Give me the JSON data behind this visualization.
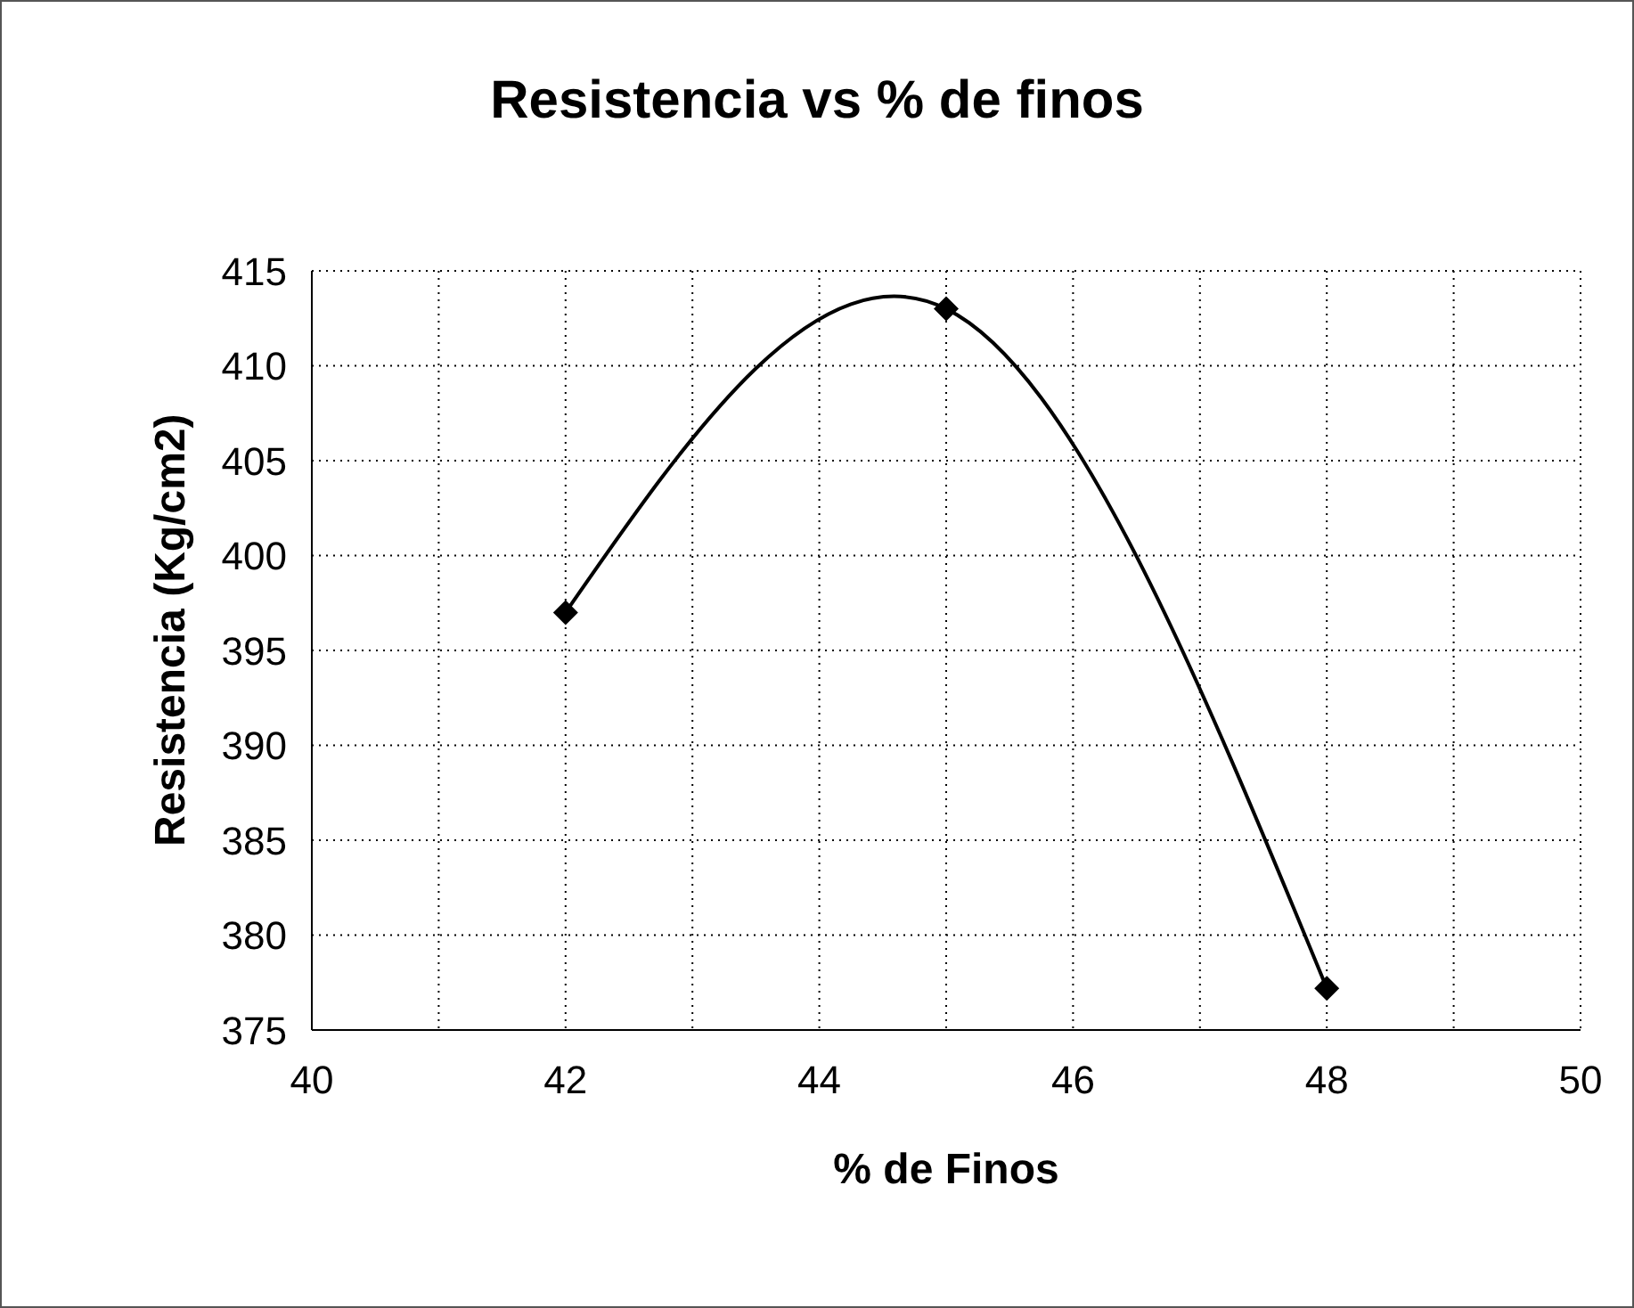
{
  "chart_data": {
    "type": "line",
    "title": "Resistencia vs % de finos",
    "xlabel": "% de Finos",
    "ylabel": "Resistencia (Kg/cm2)",
    "x": [
      42,
      45,
      48
    ],
    "series": [
      {
        "color": "#000000",
        "values": [
          397,
          413,
          377.2
        ]
      }
    ],
    "xlim": [
      40,
      50
    ],
    "xticks": [
      40,
      {
        "value": 41,
        "label": null
      },
      42,
      {
        "value": 43,
        "label": null
      },
      44,
      {
        "value": 45,
        "label": null
      },
      46,
      {
        "value": 47,
        "label": null
      },
      48,
      {
        "value": 49,
        "label": null
      },
      50
    ],
    "ylim": [
      375,
      415
    ],
    "yticks": [
      375,
      380,
      385,
      390,
      395,
      400,
      405,
      410,
      415
    ],
    "grid": true,
    "marker": "diamond",
    "line_style": "solid"
  }
}
